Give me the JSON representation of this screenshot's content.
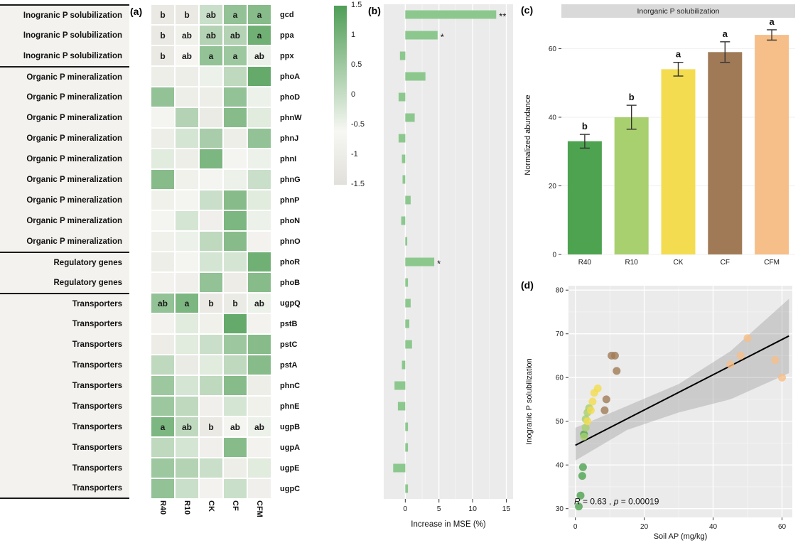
{
  "panels": {
    "a": "(a)",
    "b": "(b)",
    "c": "(c)",
    "d": "(d)"
  },
  "colors": {
    "heatmap_high": "#4f9e56",
    "heatmap_mid": "#f7f7f3",
    "heatmap_neg": "#e1e0da",
    "mse_bar": "#8cc88e",
    "panel_bg": "#ebebeb",
    "grid_major": "#ffffff",
    "ci_band": "#808080",
    "groups": {
      "R40": "#4da34f",
      "R10": "#a8d06e",
      "CK": "#f3dc4f",
      "CF": "#a07a56",
      "CFM": "#f6be88"
    }
  },
  "chart_data": [
    {
      "id": "p-gene-heatmap",
      "type": "heatmap",
      "columns": [
        "R40",
        "R10",
        "CK",
        "CF",
        "CFM"
      ],
      "legend_ticks": [
        "1.5",
        "1",
        "0.5",
        "0",
        "-0.5",
        "-1",
        "-1.5"
      ],
      "legend_range": [
        1.5,
        -1.5
      ],
      "rows": [
        {
          "category": "Inogranic P solubilization",
          "gene": "gcd",
          "letters": [
            "b",
            "b",
            "ab",
            "a",
            "a"
          ],
          "values": [
            -0.9,
            -0.9,
            0.4,
            0.9,
            1.0
          ]
        },
        {
          "category": "Inogranic P solubilization",
          "gene": "ppa",
          "letters": [
            "b",
            "ab",
            "ab",
            "ab",
            "a"
          ],
          "values": [
            -0.9,
            -0.4,
            0.6,
            0.6,
            1.2
          ]
        },
        {
          "category": "Inogranic P solubilization",
          "gene": "ppx",
          "letters": [
            "b",
            "ab",
            "a",
            "a",
            "ab"
          ],
          "values": [
            -0.9,
            -0.1,
            0.9,
            0.8,
            0.1
          ]
        },
        {
          "category": "Organic P mineralization",
          "gene": "phoA",
          "letters": [],
          "values": [
            -0.6,
            -0.6,
            0.1,
            0.5,
            1.3
          ]
        },
        {
          "category": "Organic P mineralization",
          "gene": "phoD",
          "letters": [],
          "values": [
            0.9,
            -0.6,
            -0.6,
            0.9,
            0.1
          ]
        },
        {
          "category": "Organic P mineralization",
          "gene": "phnW",
          "letters": [],
          "values": [
            -0.2,
            0.6,
            -0.8,
            1.0,
            0.2
          ]
        },
        {
          "category": "Organic P mineralization",
          "gene": "phnJ",
          "letters": [],
          "values": [
            -0.6,
            0.3,
            0.7,
            -0.6,
            0.9
          ]
        },
        {
          "category": "Organic P mineralization",
          "gene": "phnI",
          "letters": [],
          "values": [
            0.2,
            -0.6,
            1.1,
            -0.2,
            0.1
          ]
        },
        {
          "category": "Organic P mineralization",
          "gene": "phnG",
          "letters": [],
          "values": [
            1.0,
            -0.4,
            -0.2,
            0.1,
            0.4
          ]
        },
        {
          "category": "Organic P mineralization",
          "gene": "phnP",
          "letters": [],
          "values": [
            -0.4,
            -0.2,
            0.4,
            1.0,
            0.2
          ]
        },
        {
          "category": "Organic P mineralization",
          "gene": "phoN",
          "letters": [],
          "values": [
            -0.2,
            0.3,
            -0.5,
            1.1,
            0.1
          ]
        },
        {
          "category": "Organic P mineralization",
          "gene": "phnO",
          "letters": [],
          "values": [
            -0.4,
            0.1,
            0.5,
            1.0,
            -0.3
          ]
        },
        {
          "category": "Regulatory genes",
          "gene": "phoR",
          "letters": [],
          "values": [
            -0.6,
            -0.2,
            0.3,
            0.3,
            1.2
          ]
        },
        {
          "category": "Regulatory genes",
          "gene": "phoB",
          "letters": [],
          "values": [
            -0.3,
            -0.5,
            0.9,
            -0.7,
            1.0
          ]
        },
        {
          "category": "Transporters",
          "gene": "ugpQ",
          "letters": [
            "ab",
            "a",
            "b",
            "b",
            "ab"
          ],
          "values": [
            0.9,
            1.1,
            -0.9,
            -0.8,
            0.1
          ]
        },
        {
          "category": "Transporters",
          "gene": "pstB",
          "letters": [],
          "values": [
            -0.3,
            0.2,
            -0.4,
            1.3,
            -0.3
          ]
        },
        {
          "category": "Transporters",
          "gene": "pstC",
          "letters": [],
          "values": [
            -0.7,
            0.2,
            0.4,
            0.8,
            1.0
          ]
        },
        {
          "category": "Transporters",
          "gene": "pstA",
          "letters": [],
          "values": [
            0.5,
            -0.8,
            0.2,
            0.5,
            1.0
          ]
        },
        {
          "category": "Transporters",
          "gene": "phnC",
          "letters": [],
          "values": [
            0.8,
            0.3,
            0.5,
            1.0,
            -0.6
          ]
        },
        {
          "category": "Transporters",
          "gene": "phnE",
          "letters": [],
          "values": [
            0.8,
            0.5,
            -0.5,
            0.3,
            -0.4
          ]
        },
        {
          "category": "Transporters",
          "gene": "ugpB",
          "letters": [
            "a",
            "ab",
            "b",
            "ab",
            "ab"
          ],
          "values": [
            1.1,
            0.5,
            -0.9,
            -0.2,
            0.1
          ]
        },
        {
          "category": "Transporters",
          "gene": "ugpA",
          "letters": [],
          "values": [
            0.5,
            0.3,
            -0.5,
            1.0,
            -0.3
          ]
        },
        {
          "category": "Transporters",
          "gene": "ugpE",
          "letters": [],
          "values": [
            0.8,
            0.6,
            0.4,
            -0.6,
            0.2
          ]
        },
        {
          "category": "Transporters",
          "gene": "ugpC",
          "letters": [],
          "values": [
            0.9,
            0.4,
            -0.3,
            0.4,
            -0.5
          ]
        }
      ]
    },
    {
      "id": "mse-importance",
      "type": "bar",
      "orientation": "horizontal",
      "xlabel": "Increase in MSE (%)",
      "xticks": [
        0,
        5,
        10,
        15
      ],
      "xlim": [
        -3.2,
        16
      ],
      "bars": [
        {
          "gene": "gcd",
          "value": 13.5,
          "sig": "**"
        },
        {
          "gene": "ppa",
          "value": 4.8,
          "sig": "*"
        },
        {
          "gene": "ppx",
          "value": -0.8,
          "sig": ""
        },
        {
          "gene": "phoA",
          "value": 3.0,
          "sig": ""
        },
        {
          "gene": "phoD",
          "value": -1.0,
          "sig": ""
        },
        {
          "gene": "phnW",
          "value": 1.4,
          "sig": ""
        },
        {
          "gene": "phnJ",
          "value": -1.0,
          "sig": ""
        },
        {
          "gene": "phnI",
          "value": -0.5,
          "sig": ""
        },
        {
          "gene": "phnG",
          "value": -0.4,
          "sig": ""
        },
        {
          "gene": "phnP",
          "value": 0.8,
          "sig": ""
        },
        {
          "gene": "phoN",
          "value": -0.6,
          "sig": ""
        },
        {
          "gene": "phnO",
          "value": 0.3,
          "sig": ""
        },
        {
          "gene": "phoR",
          "value": 4.3,
          "sig": "*"
        },
        {
          "gene": "phoB",
          "value": 0.4,
          "sig": ""
        },
        {
          "gene": "ugpQ",
          "value": 0.8,
          "sig": ""
        },
        {
          "gene": "pstB",
          "value": 0.6,
          "sig": ""
        },
        {
          "gene": "pstC",
          "value": 1.0,
          "sig": ""
        },
        {
          "gene": "pstA",
          "value": -0.5,
          "sig": ""
        },
        {
          "gene": "phnC",
          "value": -1.6,
          "sig": ""
        },
        {
          "gene": "phnE",
          "value": -1.1,
          "sig": ""
        },
        {
          "gene": "ugpB",
          "value": 0.4,
          "sig": ""
        },
        {
          "gene": "ugpA",
          "value": 0.4,
          "sig": ""
        },
        {
          "gene": "ugpE",
          "value": -1.8,
          "sig": ""
        },
        {
          "gene": "ugpC",
          "value": 0.4,
          "sig": ""
        }
      ]
    },
    {
      "id": "abundance-bars",
      "type": "bar",
      "title": "Inorganic P solubilization",
      "ylabel": "Normalized abundance",
      "yticks": [
        0,
        20,
        40,
        60
      ],
      "ylim": [
        0,
        69
      ],
      "categories": [
        "R40",
        "R10",
        "CK",
        "CF",
        "CFM"
      ],
      "values": [
        33,
        40,
        54,
        59,
        64
      ],
      "errors": [
        2,
        3.5,
        2,
        3,
        1.5
      ],
      "letters": [
        "b",
        "b",
        "a",
        "a",
        "a"
      ]
    },
    {
      "id": "scatter-regression",
      "type": "scatter",
      "xlabel": "Soil AP (mg/kg)",
      "ylabel": "Inogranic P solubilization",
      "xticks": [
        0,
        20,
        40,
        60
      ],
      "yticks": [
        30,
        40,
        50,
        60,
        70,
        80
      ],
      "xlim": [
        -2,
        63
      ],
      "ylim": [
        28,
        81
      ],
      "annotation": {
        "r_label": "R",
        "r_text": " = 0.63 , ",
        "p_label": "p",
        "p_text": " = 0.00019"
      },
      "regression": {
        "x1": 0,
        "y1": 44.5,
        "x2": 62,
        "y2": 69.5
      },
      "ci_band": [
        [
          0,
          41,
          48.5
        ],
        [
          15,
          48,
          53.5
        ],
        [
          30,
          52,
          58.5
        ],
        [
          45,
          55,
          66
        ],
        [
          62,
          61,
          78
        ]
      ],
      "points": [
        {
          "group": "R40",
          "x": 1.0,
          "y": 30.5
        },
        {
          "group": "R40",
          "x": 1.5,
          "y": 33
        },
        {
          "group": "R40",
          "x": 2.0,
          "y": 37.5
        },
        {
          "group": "R40",
          "x": 2.2,
          "y": 39.5
        },
        {
          "group": "R40",
          "x": 2.5,
          "y": 47
        },
        {
          "group": "R10",
          "x": 2.5,
          "y": 46.5
        },
        {
          "group": "R10",
          "x": 3.0,
          "y": 48.5
        },
        {
          "group": "R10",
          "x": 3.0,
          "y": 50.5
        },
        {
          "group": "R10",
          "x": 3.5,
          "y": 52
        },
        {
          "group": "R10",
          "x": 4.0,
          "y": 53
        },
        {
          "group": "CK",
          "x": 3.5,
          "y": 50
        },
        {
          "group": "CK",
          "x": 4.5,
          "y": 52.5
        },
        {
          "group": "CK",
          "x": 5.0,
          "y": 54.5
        },
        {
          "group": "CK",
          "x": 5.5,
          "y": 56.5
        },
        {
          "group": "CK",
          "x": 6.5,
          "y": 57.5
        },
        {
          "group": "CF",
          "x": 8.5,
          "y": 52.5
        },
        {
          "group": "CF",
          "x": 9.0,
          "y": 55
        },
        {
          "group": "CF",
          "x": 10.5,
          "y": 65
        },
        {
          "group": "CF",
          "x": 11.5,
          "y": 65
        },
        {
          "group": "CF",
          "x": 12.0,
          "y": 61.5
        },
        {
          "group": "CFM",
          "x": 45,
          "y": 63
        },
        {
          "group": "CFM",
          "x": 48,
          "y": 65
        },
        {
          "group": "CFM",
          "x": 50,
          "y": 69
        },
        {
          "group": "CFM",
          "x": 58,
          "y": 64
        },
        {
          "group": "CFM",
          "x": 60,
          "y": 60
        }
      ]
    }
  ]
}
